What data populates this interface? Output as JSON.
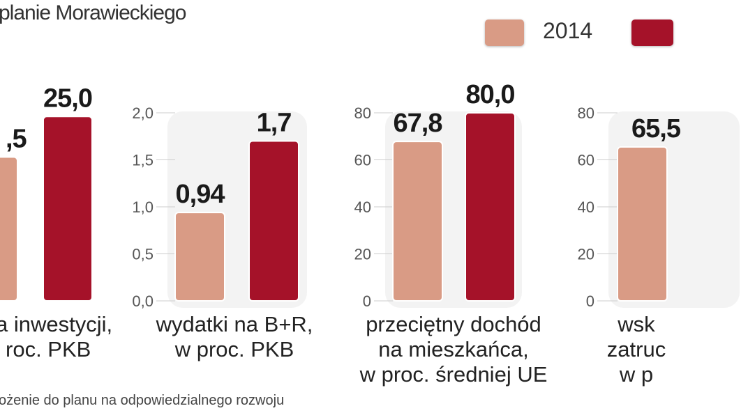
{
  "chart_data": {
    "type": "bar",
    "title": "planie Morawieckiego",
    "legend": {
      "placement": "top-right",
      "entries": [
        {
          "name": "2014",
          "color": "#d99b85"
        },
        {
          "name": "",
          "color": "#a51229"
        }
      ]
    },
    "panels": [
      {
        "category_lines": [
          "a inwestycji,",
          "roc. PKB"
        ],
        "ylim": [
          0,
          25.5
        ],
        "ticks": [],
        "values": [
          19.5,
          25.0
        ],
        "labels": [
          ",5",
          "25,0"
        ]
      },
      {
        "category_lines": [
          "wydatki na B+R,",
          "w proc. PKB"
        ],
        "ylim": [
          0,
          2.0
        ],
        "ticks": [
          "0,0",
          "0,5",
          "1,0",
          "1,5",
          "2,0"
        ],
        "values": [
          0.94,
          1.7
        ],
        "labels": [
          "0,94",
          "1,7"
        ]
      },
      {
        "category_lines": [
          "przeciętny dochód",
          "na mieszkańca,",
          "w proc. średniej UE"
        ],
        "ylim": [
          0,
          80
        ],
        "ticks": [
          "0",
          "20",
          "40",
          "60",
          "80"
        ],
        "values": [
          67.8,
          80.0
        ],
        "labels": [
          "67,8",
          "80,0"
        ]
      },
      {
        "category_lines": [
          "wsk",
          "zatruc",
          "w p"
        ],
        "ylim": [
          0,
          80
        ],
        "ticks": [
          "0",
          "20",
          "40",
          "60",
          "80"
        ],
        "values": [
          65.5
        ],
        "labels": [
          "65,5"
        ]
      }
    ]
  },
  "footer": "ożenie do planu na odpowiedzialnego rozwoju"
}
